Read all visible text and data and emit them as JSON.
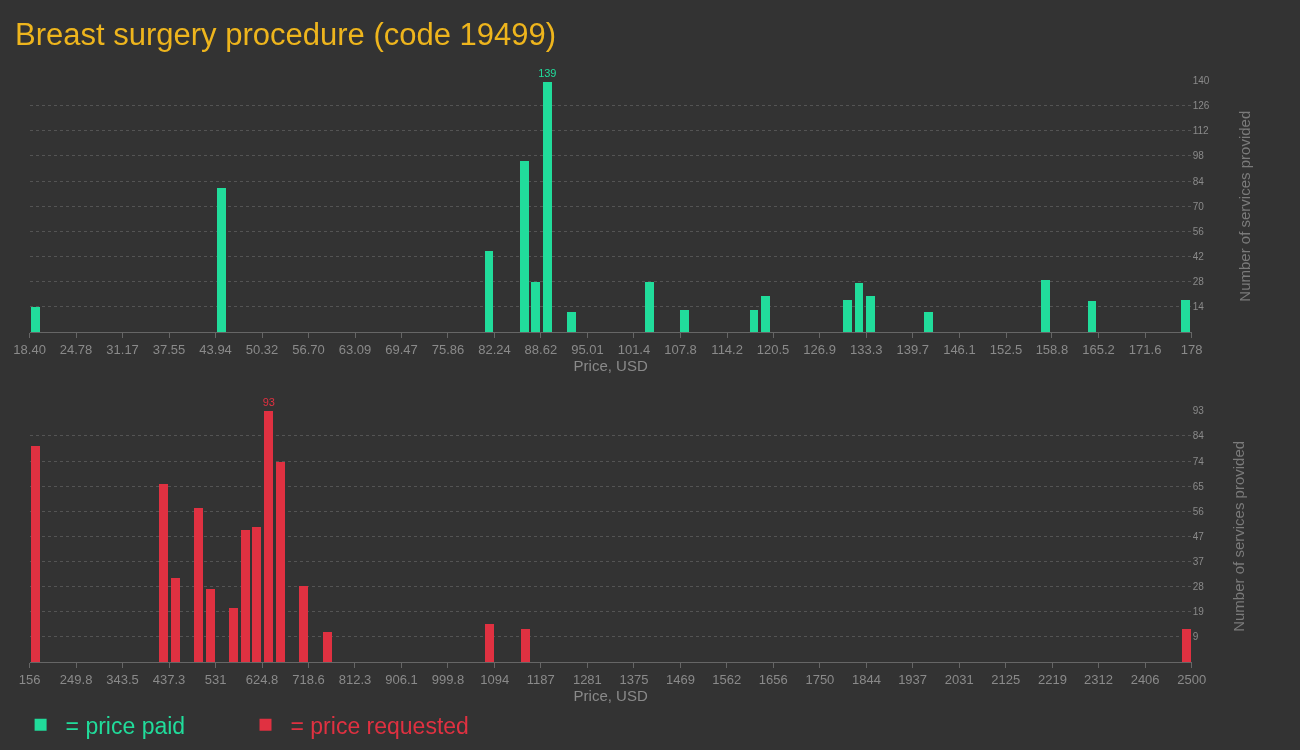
{
  "chart_data": [
    {
      "type": "bar",
      "title": "Breast surgery procedure (code 19499)",
      "xlabel": "Price, USD",
      "ylabel": "Number of services provided",
      "x": [
        19.2,
        44.8,
        81.5,
        86.4,
        87.9,
        89.5,
        92.8,
        103.5,
        108.3,
        117.9,
        119.5,
        130.7,
        132.3,
        133.9,
        141.9,
        157.9,
        164.3,
        177.1
      ],
      "series": [
        {
          "name": "= price paid",
          "color": "#21dc9b",
          "values": [
            14,
            80,
            45,
            95,
            28,
            139,
            11,
            28,
            12,
            12,
            20,
            18,
            27,
            20,
            11,
            29,
            17,
            18
          ],
          "value_labels": [
            null,
            null,
            null,
            null,
            null,
            "139",
            null,
            null,
            null,
            null,
            null,
            null,
            null,
            null,
            null,
            null,
            null,
            null
          ]
        }
      ],
      "xlim": [
        18.4,
        178
      ],
      "xticks": [
        {
          "value": 18.4,
          "label": "18.40"
        },
        24.78,
        31.17,
        37.55,
        43.94,
        50.32,
        {
          "value": 56.7,
          "label": "56.70"
        },
        63.09,
        69.47,
        75.86,
        82.24,
        88.62,
        95.01,
        101.4,
        107.8,
        114.2,
        120.5,
        126.9,
        133.3,
        139.7,
        146.1,
        152.5,
        158.8,
        165.2,
        171.6,
        178
      ],
      "ylim": [
        0,
        140
      ],
      "yticks": [
        14,
        28,
        42,
        56,
        70,
        84,
        98,
        112,
        126,
        140
      ],
      "grid": "y",
      "legend": "bottom left"
    },
    {
      "type": "bar",
      "xlabel": "Price, USD",
      "ylabel": "Number of services provided",
      "x": [
        167.7,
        426,
        449.7,
        496.3,
        520.7,
        567.3,
        591,
        614.2,
        638.4,
        661.6,
        708.6,
        756.2,
        1084.4,
        1155.8,
        2489.9
      ],
      "series": [
        {
          "name": "= price requested",
          "color": "#e03141",
          "values": [
            80,
            66,
            31,
            57,
            27,
            20,
            49,
            50,
            93,
            74,
            28,
            11,
            14,
            12,
            12
          ],
          "value_labels": [
            null,
            null,
            null,
            null,
            null,
            null,
            null,
            null,
            "93",
            null,
            null,
            null,
            null,
            null,
            null
          ]
        }
      ],
      "xlim": [
        156,
        2500
      ],
      "xticks": [
        156,
        249.8,
        343.5,
        437.3,
        531,
        624.8,
        718.6,
        812.3,
        906.1,
        999.8,
        1094,
        1187,
        1281,
        1375,
        1469,
        1562,
        1656,
        1750,
        1844,
        1937,
        2031,
        2125,
        2219,
        2312,
        2406,
        2500
      ],
      "ylim": [
        0,
        93
      ],
      "yticks": [
        {
          "value": 9.3,
          "label": "9"
        },
        {
          "value": 18.6,
          "label": "19"
        },
        {
          "value": 27.9,
          "label": "28"
        },
        {
          "value": 37.2,
          "label": "37"
        },
        {
          "value": 46.5,
          "label": "47"
        },
        {
          "value": 55.8,
          "label": "56"
        },
        {
          "value": 65.1,
          "label": "65"
        },
        {
          "value": 74.4,
          "label": "74"
        },
        {
          "value": 83.7,
          "label": "84"
        },
        {
          "value": 93,
          "label": "93"
        }
      ],
      "grid": "y",
      "legend": "bottom"
    }
  ]
}
